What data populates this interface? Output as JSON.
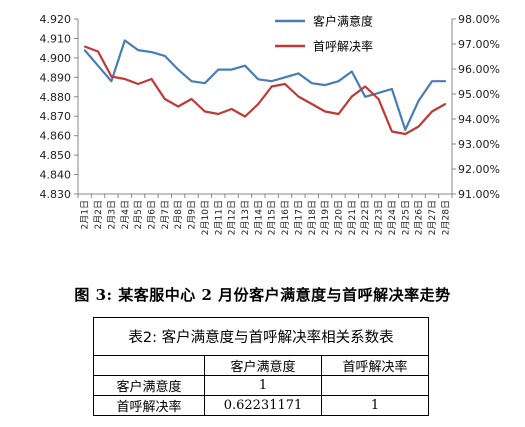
{
  "chart_data": {
    "type": "line",
    "categories": [
      "2月1日",
      "2月2日",
      "2月3日",
      "2月4日",
      "2月5日",
      "2月6日",
      "2月7日",
      "2月8日",
      "2月9日",
      "2月10日",
      "2月11日",
      "2月12日",
      "2月13日",
      "2月14日",
      "2月15日",
      "2月16日",
      "2月17日",
      "2月18日",
      "2月19日",
      "2月20日",
      "2月21日",
      "2月22日",
      "2月23日",
      "2月24日",
      "2月25日",
      "2月26日",
      "2月27日",
      "2月28日"
    ],
    "left_axis": {
      "ylim": [
        4.83,
        4.92
      ],
      "ticks": [
        "4.830",
        "4.840",
        "4.850",
        "4.860",
        "4.870",
        "4.880",
        "4.890",
        "4.900",
        "4.910",
        "4.920"
      ]
    },
    "right_axis": {
      "ylim": [
        91,
        98
      ],
      "ticks": [
        "91.00%",
        "92.00%",
        "93.00%",
        "94.00%",
        "95.00%",
        "96.00%",
        "97.00%",
        "98.00%"
      ]
    },
    "legend_position": "top-right",
    "grid": false,
    "series": [
      {
        "name": "客户满意度",
        "axis": "left",
        "color": "#4a7db5",
        "values": [
          4.904,
          4.896,
          4.888,
          4.909,
          4.904,
          4.903,
          4.901,
          4.894,
          4.888,
          4.887,
          4.894,
          4.894,
          4.896,
          4.889,
          4.888,
          4.89,
          4.892,
          4.887,
          4.886,
          4.888,
          4.893,
          4.88,
          4.882,
          4.884,
          4.863,
          4.878,
          4.888,
          4.888
        ]
      },
      {
        "name": "首呼解决率",
        "axis": "right",
        "color": "#bf3a37",
        "values": [
          96.9,
          96.7,
          95.7,
          95.6,
          95.4,
          95.6,
          94.8,
          94.5,
          94.8,
          94.3,
          94.2,
          94.4,
          94.1,
          94.6,
          95.3,
          95.4,
          94.9,
          94.6,
          94.3,
          94.2,
          94.9,
          95.3,
          94.8,
          93.5,
          93.4,
          93.7,
          94.3,
          94.6
        ]
      }
    ]
  },
  "figure_caption": "图 3:  某客服中心 2 月份客户满意度与首呼解决率走势",
  "table": {
    "title": "表2: 客户满意度与首呼解决率相关系数表",
    "col_headers": [
      "",
      "客户满意度",
      "首呼解决率"
    ],
    "rows": [
      {
        "label": "客户满意度",
        "c1": "1",
        "c2": ""
      },
      {
        "label": "首呼解决率",
        "c1": "0.62231171",
        "c2": "1"
      }
    ]
  }
}
